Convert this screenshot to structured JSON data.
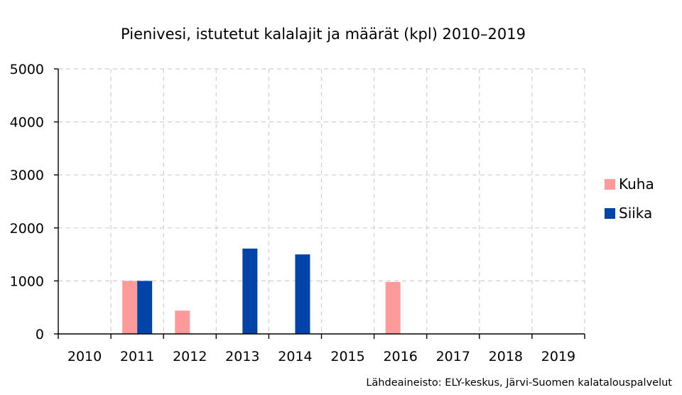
{
  "chart_data": {
    "type": "bar",
    "title": "Pienivesi, istutetut kalalajit ja määrät (kpl) 2010–2019",
    "xlabel": "",
    "ylabel": "",
    "categories": [
      "2010",
      "2011",
      "2012",
      "2013",
      "2014",
      "2015",
      "2016",
      "2017",
      "2018",
      "2019"
    ],
    "series": [
      {
        "name": "Kuha",
        "color": "#ff9a9a",
        "values": [
          0,
          1000,
          440,
          0,
          0,
          0,
          980,
          0,
          0,
          0
        ]
      },
      {
        "name": "Siika",
        "color": "#0044aa",
        "values": [
          0,
          1000,
          0,
          1610,
          1500,
          0,
          0,
          0,
          0,
          0
        ]
      }
    ],
    "ylim": [
      0,
      5000
    ],
    "yticks": [
      0,
      1000,
      2000,
      3000,
      4000,
      5000
    ],
    "grid": true,
    "legend": "right",
    "source": "Lähdeaineisto: ELY-keskus, Järvi-Suomen kalatalouspalvelut"
  }
}
